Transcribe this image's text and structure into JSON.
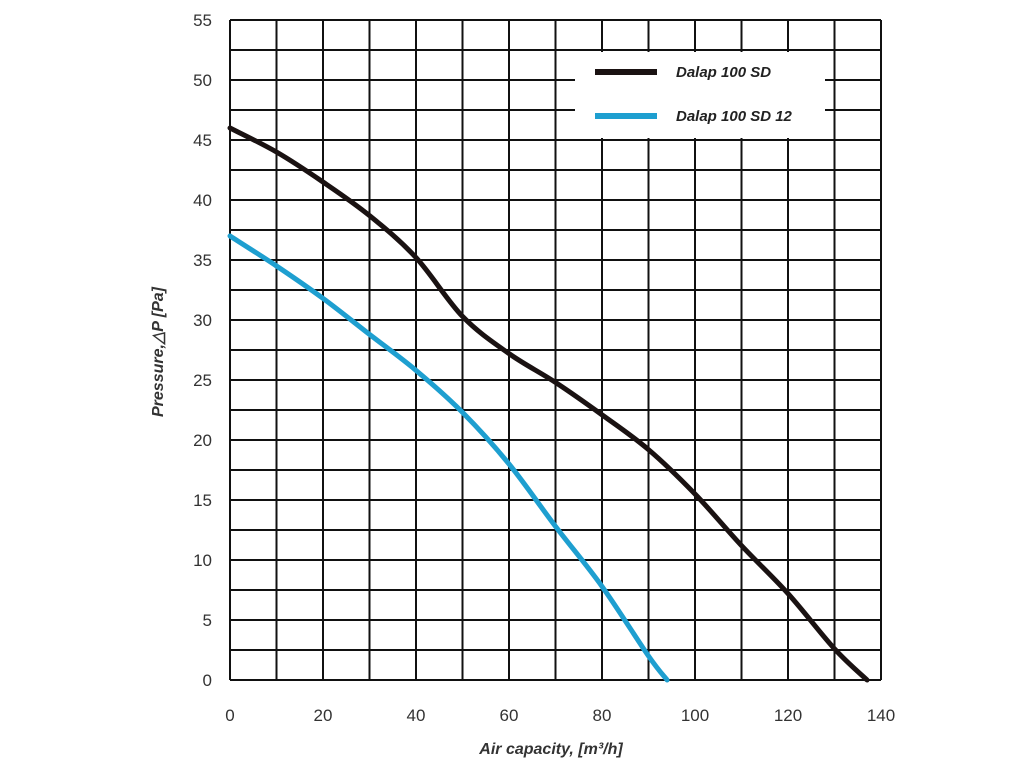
{
  "chart_data": {
    "type": "line",
    "xlabel": "Air capacity, [m³/h]",
    "ylabel": "Pressure,△P [Pa]",
    "xlim": [
      0,
      140
    ],
    "ylim": [
      0,
      55
    ],
    "x_ticks": [
      "0",
      "20",
      "40",
      "60",
      "80",
      "100",
      "120",
      "140"
    ],
    "y_ticks": [
      "0",
      "5",
      "10",
      "15",
      "20",
      "25",
      "30",
      "35",
      "40",
      "45",
      "50",
      "55"
    ],
    "grid": true,
    "legend_position": "top-right",
    "series": [
      {
        "name": "Dalap 100 SD",
        "color": "#1a1212",
        "x": [
          0,
          10,
          20,
          30,
          40,
          50,
          60,
          70,
          80,
          90,
          100,
          110,
          120,
          130,
          137
        ],
        "y": [
          46,
          44,
          41.5,
          38.7,
          35.2,
          30.3,
          27.2,
          24.8,
          22.1,
          19.2,
          15.5,
          11.2,
          7.2,
          2.6,
          0
        ]
      },
      {
        "name": "Dalap 100 SD 12",
        "color": "#1e9fd0",
        "x": [
          0,
          10,
          20,
          30,
          40,
          50,
          60,
          70,
          80,
          90,
          94
        ],
        "y": [
          37,
          34.5,
          31.8,
          28.8,
          25.8,
          22.3,
          18,
          12.8,
          7.8,
          2,
          0
        ]
      }
    ]
  }
}
